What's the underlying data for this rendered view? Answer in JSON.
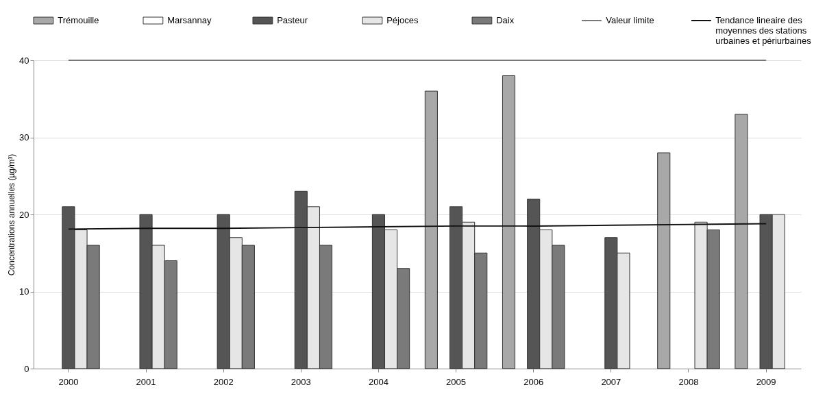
{
  "chart_data": {
    "type": "bar",
    "ylabel": "Concentrations annuelles (µg/m³)",
    "categories": [
      "2000",
      "2001",
      "2002",
      "2003",
      "2004",
      "2005",
      "2006",
      "2007",
      "2008",
      "2009"
    ],
    "series": [
      {
        "name": "Trémouille",
        "color": "#a8a8a8",
        "values": [
          null,
          null,
          null,
          null,
          null,
          36,
          38,
          null,
          28,
          33
        ]
      },
      {
        "name": "Marsannay",
        "color": "#ffffff",
        "values": [
          null,
          null,
          null,
          null,
          null,
          null,
          null,
          null,
          null,
          null
        ]
      },
      {
        "name": "Pasteur",
        "color": "#555555",
        "values": [
          21,
          20,
          20,
          23,
          20,
          21,
          22,
          17,
          null,
          20
        ]
      },
      {
        "name": "Péjoces",
        "color": "#e6e6e6",
        "values": [
          18,
          16,
          17,
          21,
          18,
          19,
          18,
          15,
          19,
          20
        ]
      },
      {
        "name": "Daix",
        "color": "#7a7a7a",
        "values": [
          16,
          14,
          16,
          16,
          13,
          15,
          16,
          null,
          18,
          null
        ]
      },
      {
        "name": "Valeur limite",
        "type": "line",
        "color": "#777777",
        "values": [
          40,
          40,
          40,
          40,
          40,
          40,
          40,
          40,
          40,
          40
        ]
      },
      {
        "name": "Tendance lineaire des moyennes des stations urbaines et périurbaines",
        "type": "line",
        "color": "#111111",
        "values": [
          18.1,
          18.2,
          18.2,
          18.3,
          18.4,
          18.5,
          18.5,
          18.6,
          18.7,
          18.8
        ]
      }
    ],
    "ylim": [
      0,
      40
    ],
    "yticks": [
      0,
      10,
      20,
      30,
      40
    ],
    "grid": "y",
    "legend": "top"
  }
}
